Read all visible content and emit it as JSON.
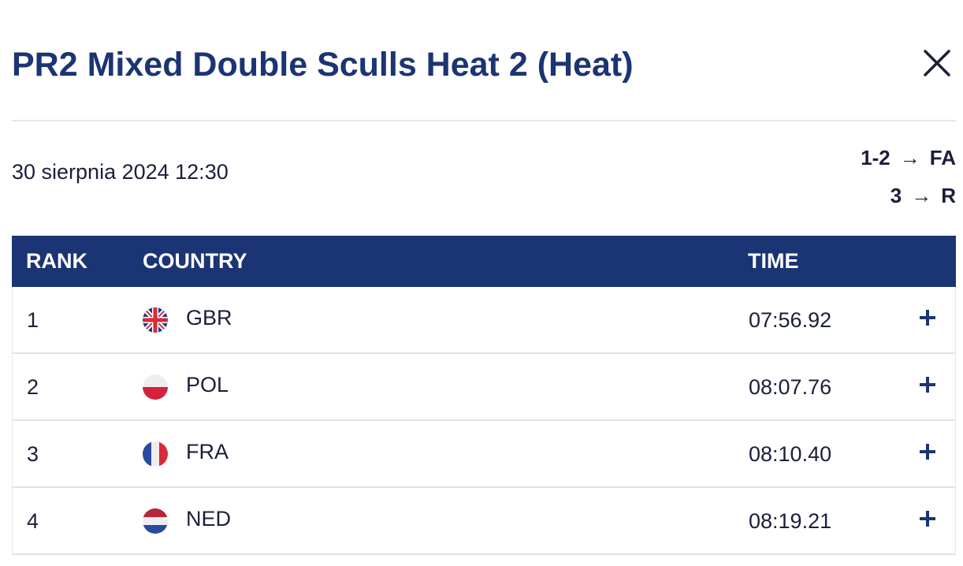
{
  "header": {
    "title": "PR2 Mixed Double Sculls Heat 2 (Heat)"
  },
  "event": {
    "date": "30 sierpnia 2024 12:30",
    "qualification": [
      {
        "range": "1-2",
        "arrow": "→",
        "target": "FA"
      },
      {
        "range": "3",
        "arrow": "→",
        "target": "R"
      }
    ]
  },
  "table": {
    "headers": {
      "rank": "RANK",
      "country": "COUNTRY",
      "time": "TIME"
    },
    "rows": [
      {
        "rank": "1",
        "country": "GBR",
        "flag": "gbr-flag-icon",
        "time": "07:56.92"
      },
      {
        "rank": "2",
        "country": "POL",
        "flag": "pol-flag-icon",
        "time": "08:07.76"
      },
      {
        "rank": "3",
        "country": "FRA",
        "flag": "fra-flag-icon",
        "time": "08:10.40"
      },
      {
        "rank": "4",
        "country": "NED",
        "flag": "ned-flag-icon",
        "time": "08:19.21"
      }
    ]
  },
  "colors": {
    "primary": "#1b3473",
    "text": "#1a1f3a",
    "divider": "#e6e8ec"
  }
}
